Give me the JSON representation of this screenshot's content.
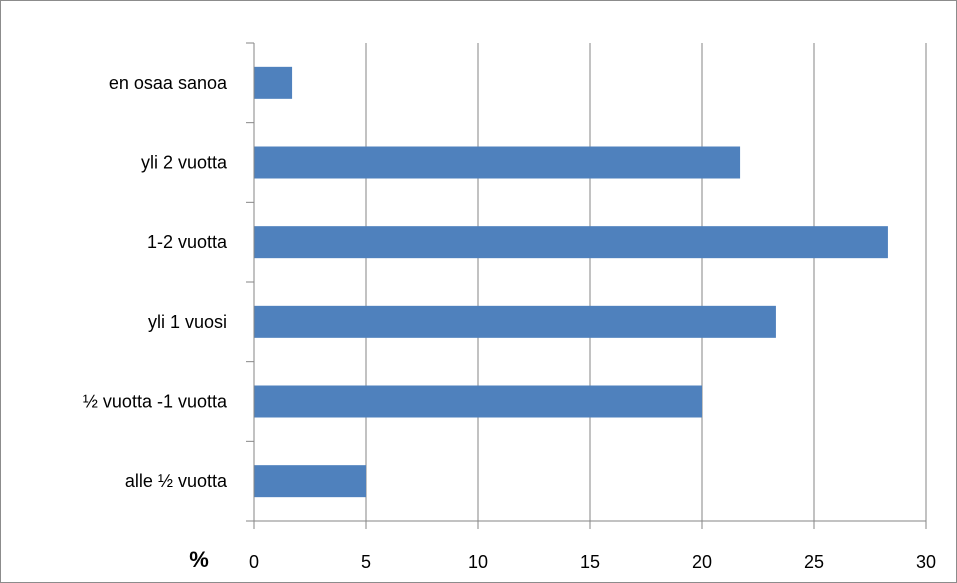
{
  "chart_data": {
    "type": "bar",
    "orientation": "horizontal",
    "categories": [
      "en osaa sanoa",
      "yli 2 vuotta",
      "1-2 vuotta",
      "yli 1 vuosi",
      "½ vuotta -1 vuotta",
      "alle ½ vuotta"
    ],
    "values": [
      1.7,
      21.7,
      28.3,
      23.3,
      20.0,
      5.0
    ],
    "xlabel": "%",
    "xlim": [
      0,
      30
    ],
    "xticks": [
      "0",
      "5",
      "10",
      "15",
      "20",
      "25",
      "30"
    ],
    "grid": "vertical",
    "legend": "none",
    "colors": {
      "bar": "#4f81bd",
      "grid": "#868686",
      "axis": "#868686"
    }
  }
}
